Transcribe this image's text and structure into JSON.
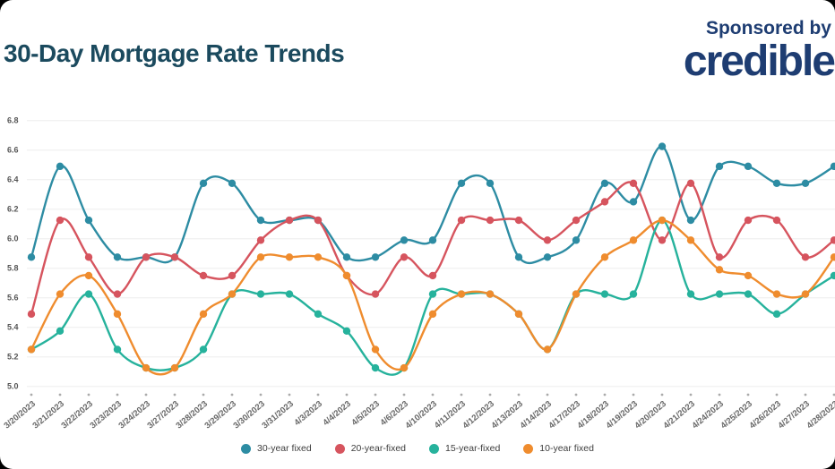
{
  "header": {
    "title": "30-Day Mortgage Rate Trends",
    "title_color": "#1b4a5e",
    "sponsor_by": "Sponsored by",
    "sponsor_brand": "credible",
    "sponsor_color": "#1e3d72"
  },
  "chart_data": {
    "type": "line",
    "x": [
      "3/20/2023",
      "3/21/2023",
      "3/22/2023",
      "3/23/2023",
      "3/24/2023",
      "3/27/2023",
      "3/28/2023",
      "3/29/2023",
      "3/30/2023",
      "3/31/2023",
      "4/3/2023",
      "4/4/2023",
      "4/5/2023",
      "4/6/2023",
      "4/10/2023",
      "4/11/2023",
      "4/12/2023",
      "4/13/2023",
      "4/14/2023",
      "4/17/2023",
      "4/18/2023",
      "4/19/2023",
      "4/20/2023",
      "4/21/2023",
      "4/24/2023",
      "4/25/2023",
      "4/26/2023",
      "4/27/2023",
      "4/28/2023"
    ],
    "series": [
      {
        "name": "30-year fixed",
        "color": "#2d8ca3",
        "values": [
          5.875,
          6.49,
          6.125,
          5.875,
          5.875,
          5.875,
          6.375,
          6.375,
          6.125,
          6.125,
          6.125,
          5.875,
          5.875,
          5.99,
          5.99,
          6.375,
          6.375,
          5.875,
          5.875,
          5.99,
          6.375,
          6.25,
          6.625,
          6.125,
          6.49,
          6.49,
          6.375,
          6.375,
          6.49
        ]
      },
      {
        "name": "20-year-fixed",
        "color": "#d6545e",
        "values": [
          5.49,
          6.125,
          5.875,
          5.625,
          5.875,
          5.875,
          5.75,
          5.75,
          5.99,
          6.125,
          6.125,
          5.75,
          5.625,
          5.875,
          5.75,
          6.125,
          6.125,
          6.125,
          5.99,
          6.125,
          6.25,
          6.375,
          5.99,
          6.375,
          5.875,
          6.125,
          6.125,
          5.875,
          5.99
        ]
      },
      {
        "name": "15-year-fixed",
        "color": "#26b29c",
        "values": [
          5.25,
          5.375,
          5.625,
          5.25,
          5.125,
          5.125,
          5.25,
          5.625,
          5.625,
          5.625,
          5.49,
          5.375,
          5.125,
          5.125,
          5.625,
          5.625,
          5.625,
          5.49,
          5.25,
          5.625,
          5.625,
          5.625,
          6.125,
          5.625,
          5.625,
          5.625,
          5.49,
          5.625,
          5.75
        ]
      },
      {
        "name": "10-year fixed",
        "color": "#ef8c2e",
        "values": [
          5.25,
          5.625,
          5.75,
          5.49,
          5.125,
          5.125,
          5.49,
          5.625,
          5.875,
          5.875,
          5.875,
          5.75,
          5.25,
          5.125,
          5.49,
          5.625,
          5.625,
          5.49,
          5.25,
          5.625,
          5.875,
          5.99,
          6.125,
          5.99,
          5.79,
          5.75,
          5.625,
          5.625,
          5.875
        ]
      }
    ],
    "ylim": [
      5.0,
      6.8
    ],
    "ytick_step": 0.2,
    "grid": true,
    "legend_position": "bottom",
    "grid_color": "#ededed",
    "ytick_color": "#555555",
    "xtick_color": "#666666"
  }
}
